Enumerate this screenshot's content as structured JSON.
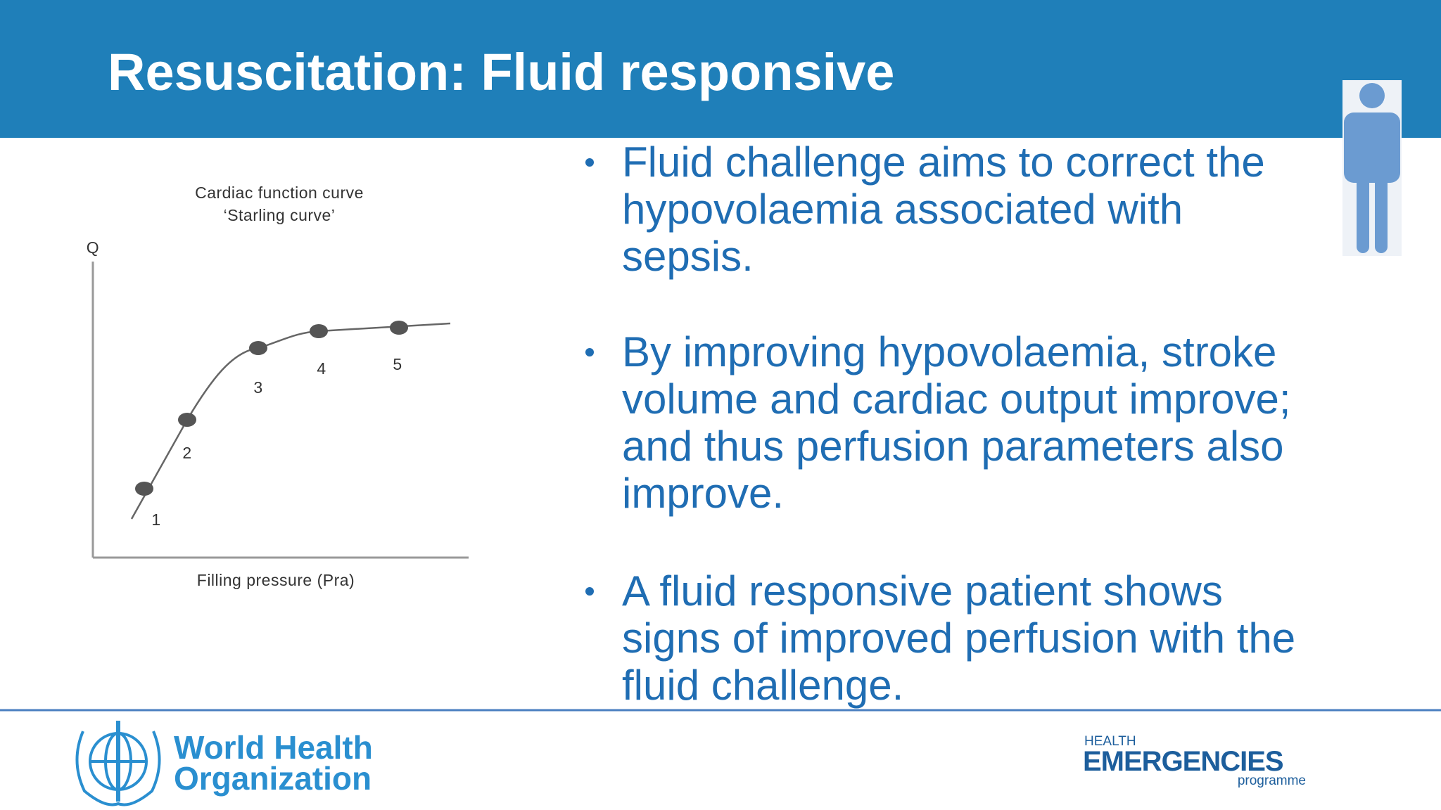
{
  "header": {
    "title": "Resuscitation: Fluid responsive"
  },
  "figure": {
    "title_lines": [
      "Cardiac function curve",
      "‘Starling curve’"
    ],
    "y_label": "Q",
    "x_label": "Filling pressure (Pra)",
    "point_labels": [
      "1",
      "2",
      "3",
      "4",
      "5"
    ]
  },
  "bullets": [
    {
      "lines": [
        "Fluid challenge aims to correct the",
        "hypovolaemia associated with",
        "sepsis."
      ]
    },
    {
      "lines": [
        "By improving hypovolaemia, stroke",
        "volume and cardiac output improve;",
        "and thus perfusion parameters also",
        "improve."
      ]
    },
    {
      "lines": [
        "A fluid responsive patient shows",
        "signs of improved perfusion with the",
        "fluid challenge."
      ]
    }
  ],
  "footer": {
    "who_lines": [
      "World Health",
      "Organization"
    ],
    "programme_top": "HEALTH",
    "programme_main": "EMERGENCIES",
    "programme_bottom": "programme"
  }
}
